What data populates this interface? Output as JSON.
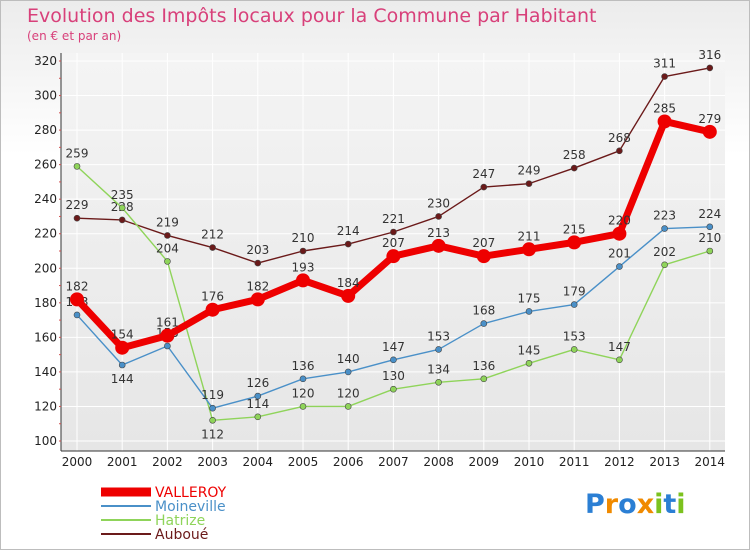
{
  "chart_data": {
    "type": "line",
    "title": "Evolution des Impôts locaux pour la Commune par Habitant",
    "subtitle": "(en € et par an)",
    "categories": [
      "2000",
      "2001",
      "2002",
      "2003",
      "2004",
      "2005",
      "2006",
      "2007",
      "2008",
      "2009",
      "2010",
      "2011",
      "2012",
      "2013",
      "2014"
    ],
    "y_ticks": [
      "100",
      "120",
      "140",
      "160",
      "180",
      "200",
      "220",
      "240",
      "260",
      "280",
      "300",
      "320"
    ],
    "ylim": [
      100,
      325
    ],
    "grid": true,
    "legend_position": "bottom-left",
    "series": [
      {
        "name": "Auboué",
        "color": "#6b1a1a",
        "values": [
          229,
          228,
          219,
          212,
          203,
          210,
          214,
          221,
          230,
          247,
          249,
          258,
          268,
          311,
          316
        ],
        "labels": [
          "229",
          "228",
          "219",
          "212",
          "203",
          "210",
          "214",
          "221",
          "230",
          "247",
          "249",
          "258",
          "268",
          "311",
          "316"
        ]
      },
      {
        "name": "Hatrize",
        "color": "#8fd45a",
        "values": [
          259,
          235,
          204,
          112,
          114,
          120,
          120,
          130,
          134,
          136,
          145,
          153,
          147,
          202,
          210
        ],
        "labels": [
          "259",
          "235",
          "204",
          "112",
          "114",
          "120",
          "120",
          "130",
          "134",
          "136",
          "145",
          "153",
          "147",
          "202",
          "210"
        ]
      },
      {
        "name": "Moineville",
        "color": "#4a90c8",
        "values": [
          173,
          144,
          155,
          119,
          126,
          136,
          140,
          147,
          153,
          168,
          175,
          179,
          201,
          223,
          224
        ],
        "labels": [
          "173",
          "144",
          "155",
          "119",
          "126",
          "136",
          "140",
          "147",
          "153",
          "168",
          "175",
          "179",
          "201",
          "223",
          "224"
        ]
      },
      {
        "name": "VALLEROY",
        "color": "#ee0000",
        "values": [
          182,
          154,
          161,
          176,
          182,
          193,
          184,
          207,
          213,
          207,
          211,
          215,
          220,
          285,
          279
        ],
        "labels": [
          "182",
          "154",
          "161",
          "176",
          "182",
          "193",
          "184",
          "207",
          "213",
          "207",
          "211",
          "215",
          "220",
          "285",
          "279"
        ]
      }
    ]
  },
  "legend": {
    "items": [
      {
        "name": "VALLEROY",
        "color": "#ee0000"
      },
      {
        "name": "Moineville",
        "color": "#4a90c8"
      },
      {
        "name": "Hatrize",
        "color": "#8fd45a"
      },
      {
        "name": "Auboué",
        "color": "#6b1a1a"
      }
    ]
  },
  "brand": {
    "letters": [
      "P",
      "r",
      "o",
      "x",
      "i",
      "t",
      "i"
    ],
    "colors": [
      "#2b7fd4",
      "#f08a00",
      "#2b7fd4",
      "#f08a00",
      "#7cc21e",
      "#2b7fd4",
      "#7cc21e"
    ]
  }
}
